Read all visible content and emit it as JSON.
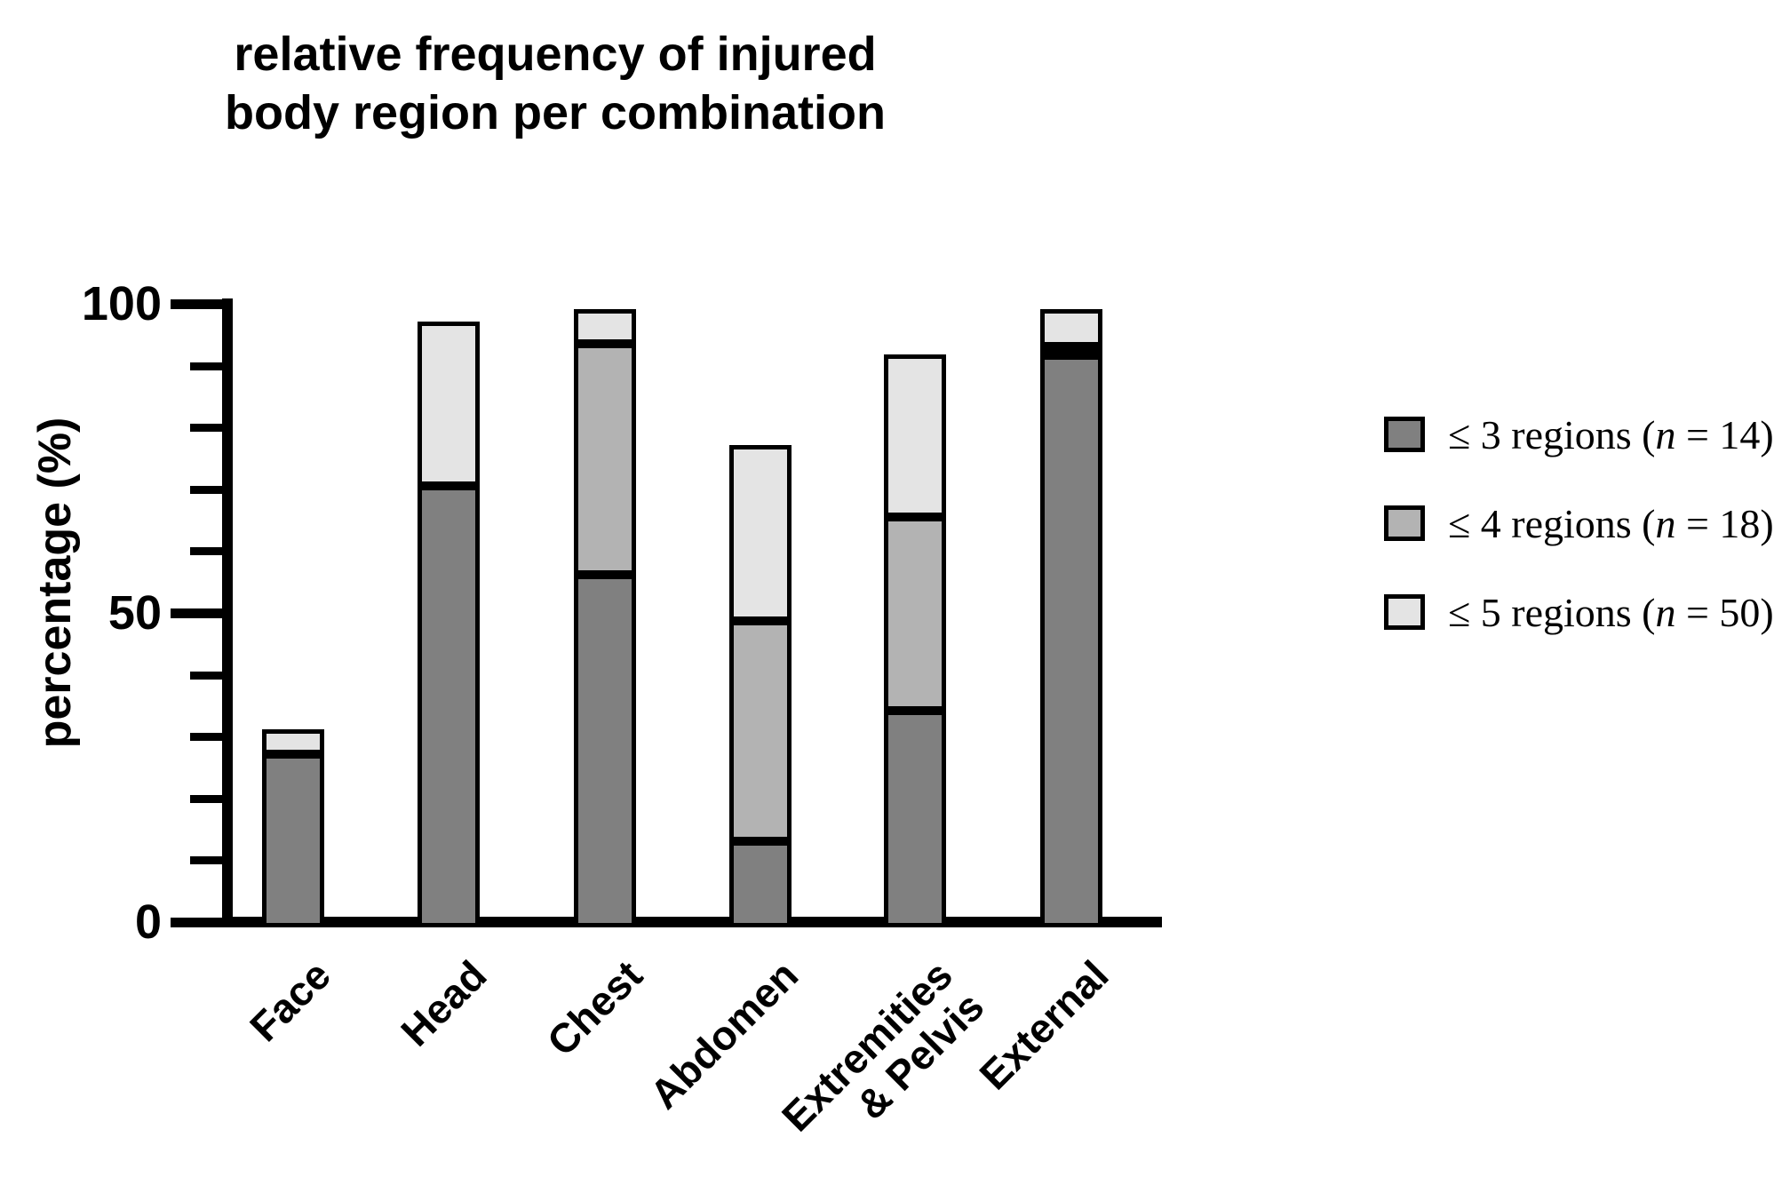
{
  "chart_data": {
    "type": "bar",
    "stacked": true,
    "title": "relative frequency of injured\nbody region per combination",
    "ylabel": "percentage (%)",
    "xlabel": "",
    "ylim": [
      0,
      100
    ],
    "yticks_major": [
      0,
      50,
      100
    ],
    "yticks_minor": [
      10,
      20,
      30,
      40,
      60,
      70,
      80,
      90
    ],
    "grid": false,
    "legend_position": "right",
    "categories": [
      "Face",
      "Head",
      "Chest",
      "Abdomen",
      "Extremities\n& Pelvis",
      "External"
    ],
    "series": [
      {
        "name": "≤ 3 regions (n = 14)",
        "color": "#808080",
        "values": [
          28.0,
          71.4,
          57.1,
          14.0,
          35.0,
          92.5
        ]
      },
      {
        "name": "≤ 4 regions (n = 18)",
        "color": "#b3b3b3",
        "values": [
          0,
          0,
          37.3,
          35.6,
          31.4,
          1.5
        ]
      },
      {
        "name": "≤ 5 regions (n = 50)",
        "color": "#e4e4e4",
        "values": [
          4.0,
          26.6,
          5.6,
          28.4,
          26.3,
          6.0
        ]
      }
    ],
    "cumulative_bar_tops": [
      32.0,
      98.0,
      100.0,
      78.0,
      92.7,
      100.0
    ]
  },
  "legend": {
    "items": [
      {
        "pre": "≤ 3 regions (",
        "n": "n",
        "post": " = 14)",
        "color": "#808080"
      },
      {
        "pre": "≤ 4 regions (",
        "n": "n",
        "post": " = 18)",
        "color": "#b3b3b3"
      },
      {
        "pre": "≤ 5 regions (",
        "n": "n",
        "post": " = 50)",
        "color": "#e4e4e4"
      }
    ]
  },
  "colors": {
    "axis": "#000000",
    "background": "#ffffff",
    "dark_gray": "#808080",
    "medium_gray": "#b3b3b3",
    "light_gray": "#e4e4e4"
  }
}
